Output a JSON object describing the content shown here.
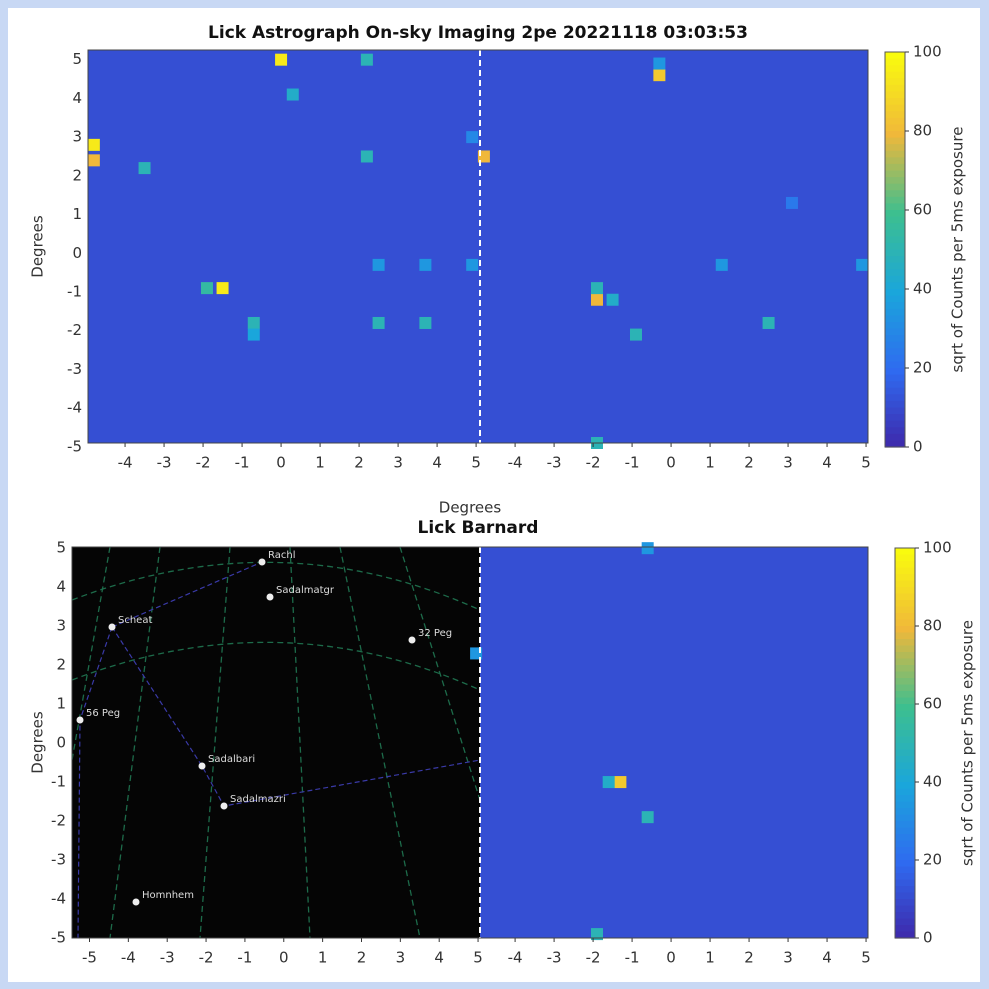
{
  "chart_data": [
    {
      "type": "heatmap",
      "title": "Lick Astrograph On-sky Imaging 2pe 20221118 03:03:53",
      "xlabel": "Degrees",
      "ylabel": "Degrees",
      "colormap": "parula",
      "ylim": [
        -4.9,
        5.25
      ],
      "yticks": [
        -5,
        -4,
        -3,
        -2,
        -1,
        0,
        1,
        2,
        3,
        4,
        5
      ],
      "colorbar": {
        "label": "sqrt of Counts per 5ms exposure",
        "lim": [
          0,
          100
        ],
        "ticks": [
          0,
          20,
          40,
          60,
          80,
          100
        ]
      },
      "panels": [
        {
          "xlim": [
            -4.95,
            5.1
          ],
          "xticks": [
            -4,
            -3,
            -2,
            -1,
            0,
            1,
            2,
            3,
            4,
            5
          ],
          "background": 12,
          "spots": [
            {
              "x": 0,
              "y": 5,
              "value": 95
            },
            {
              "x": 2.2,
              "y": 5,
              "value": 50
            },
            {
              "x": 0.3,
              "y": 4.1,
              "value": 45
            },
            {
              "x": -4.8,
              "y": 2.8,
              "value": 95
            },
            {
              "x": -4.8,
              "y": 2.4,
              "value": 80
            },
            {
              "x": -3.5,
              "y": 2.2,
              "value": 50
            },
            {
              "x": 2.2,
              "y": 2.5,
              "value": 50
            },
            {
              "x": 4.9,
              "y": 3.0,
              "value": 30
            },
            {
              "x": -1.5,
              "y": -0.9,
              "value": 95
            },
            {
              "x": -1.9,
              "y": -0.9,
              "value": 55
            },
            {
              "x": 2.5,
              "y": -0.3,
              "value": 35
            },
            {
              "x": 3.7,
              "y": -0.3,
              "value": 35
            },
            {
              "x": 4.9,
              "y": -0.3,
              "value": 35
            },
            {
              "x": -0.7,
              "y": -1.8,
              "value": 50
            },
            {
              "x": 2.5,
              "y": -1.8,
              "value": 50
            },
            {
              "x": 3.7,
              "y": -1.8,
              "value": 50
            },
            {
              "x": -0.7,
              "y": -2.1,
              "value": 40
            }
          ]
        },
        {
          "xlim": [
            -4.9,
            5.05
          ],
          "xticks": [
            -4,
            -3,
            -2,
            -1,
            0,
            1,
            2,
            3,
            4,
            5
          ],
          "background": 12,
          "spots": [
            {
              "x": -4.8,
              "y": 2.5,
              "value": 80
            },
            {
              "x": -0.3,
              "y": 4.6,
              "value": 85
            },
            {
              "x": -0.3,
              "y": 4.9,
              "value": 35
            },
            {
              "x": -1.9,
              "y": -1.2,
              "value": 80
            },
            {
              "x": -1.9,
              "y": -0.9,
              "value": 50
            },
            {
              "x": -1.5,
              "y": -1.2,
              "value": 45
            },
            {
              "x": -0.9,
              "y": -2.1,
              "value": 50
            },
            {
              "x": 1.3,
              "y": -0.3,
              "value": 35
            },
            {
              "x": 2.5,
              "y": -1.8,
              "value": 50
            },
            {
              "x": 4.9,
              "y": -0.3,
              "value": 35
            },
            {
              "x": -1.9,
              "y": -4.9,
              "value": 50
            },
            {
              "x": 3.1,
              "y": 1.3,
              "value": 25
            }
          ]
        }
      ]
    },
    {
      "type": "heatmap",
      "title": "Lick Barnard",
      "ylabel": "Degrees",
      "colormap": "parula",
      "ylim": [
        -5,
        5.03
      ],
      "yticks": [
        -5,
        -4,
        -3,
        -2,
        -1,
        0,
        1,
        2,
        3,
        4,
        5
      ],
      "colorbar": {
        "label": "sqrt of Counts per 5ms exposure",
        "lim": [
          0,
          100
        ],
        "ticks": [
          0,
          20,
          40,
          60,
          80,
          100
        ]
      },
      "sky_labels": [
        "Rachl",
        "Sadalmatgr",
        "Scheat",
        "32 Peg",
        "56 Peg",
        "Sadalbari",
        "Sadalmazri",
        "Homnhem"
      ],
      "panels": [
        {
          "xlim": [
            -5.45,
            5.05
          ],
          "xticks": [
            -5,
            -4,
            -3,
            -2,
            -1,
            0,
            1,
            2,
            3,
            4,
            5
          ],
          "sky": true
        },
        {
          "xlim": [
            -4.9,
            5.05
          ],
          "xticks": [
            -4,
            -3,
            -2,
            -1,
            0,
            1,
            2,
            3,
            4,
            5
          ],
          "background": 12,
          "spots": [
            {
              "x": -1.3,
              "y": -1.0,
              "value": 85
            },
            {
              "x": -1.6,
              "y": -1.0,
              "value": 45
            },
            {
              "x": -0.6,
              "y": -1.9,
              "value": 50
            },
            {
              "x": -0.6,
              "y": 5.0,
              "value": 35
            },
            {
              "x": -5.0,
              "y": 2.3,
              "value": 35
            },
            {
              "x": -1.9,
              "y": -4.9,
              "value": 50
            }
          ]
        }
      ]
    }
  ]
}
